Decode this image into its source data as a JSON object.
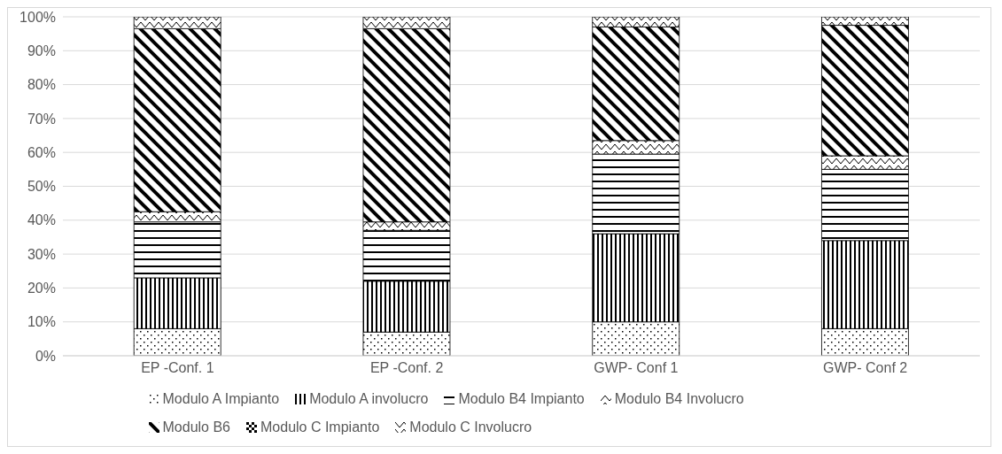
{
  "chart_data": {
    "type": "bar",
    "stacked": true,
    "categories": [
      "EP -Conf. 1",
      "EP -Conf. 2",
      "GWP- Conf 1",
      "GWP- Conf 2"
    ],
    "series": [
      {
        "name": "Modulo A Impianto",
        "color": "#000000",
        "values": [
          8,
          7,
          10,
          8
        ]
      },
      {
        "name": "Modulo A involucro",
        "color": "#000000",
        "values": [
          15,
          15,
          26,
          26
        ]
      },
      {
        "name": "Modulo B4  Impianto",
        "color": "#000000",
        "values": [
          16.5,
          15,
          23.5,
          21
        ]
      },
      {
        "name": "Modulo B4  Involucro",
        "color": "#000000",
        "values": [
          3,
          2.5,
          4,
          4
        ]
      },
      {
        "name": "Modulo B6",
        "color": "#000000",
        "values": [
          54,
          57,
          33.5,
          38.5
        ]
      },
      {
        "name": "Modulo C Impianto",
        "color": "#000000",
        "values": [
          0,
          0,
          0,
          0
        ]
      },
      {
        "name": "Modulo C Involucro",
        "color": "#000000",
        "values": [
          3.5,
          3.5,
          3,
          2.5
        ]
      }
    ],
    "ylim": [
      0,
      100
    ],
    "yticks": [
      {
        "value": 0,
        "label": "0%"
      },
      {
        "value": 10,
        "label": "10%"
      },
      {
        "value": 20,
        "label": "20%"
      },
      {
        "value": 30,
        "label": "30%"
      },
      {
        "value": 40,
        "label": "40%"
      },
      {
        "value": 50,
        "label": "50%"
      },
      {
        "value": 60,
        "label": "60%"
      },
      {
        "value": 70,
        "label": "70%"
      },
      {
        "value": 80,
        "label": "80%"
      },
      {
        "value": 90,
        "label": "90%"
      },
      {
        "value": 100,
        "label": "100%"
      }
    ],
    "grid": "y",
    "legend": "bottom"
  }
}
